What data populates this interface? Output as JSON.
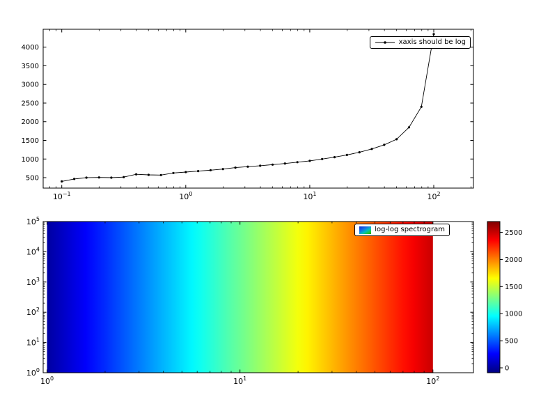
{
  "window": {
    "background": "#ffffff"
  },
  "chart_data": [
    {
      "type": "line",
      "name": "top-line-plot",
      "xscale": "log",
      "yscale": "linear",
      "grid": false,
      "legend_position": "upper right",
      "xlim_log10": [
        -1.15,
        2.32
      ],
      "ylim": [
        220,
        4480
      ],
      "xtick_exponents": [
        -1,
        0,
        1,
        2
      ],
      "yticks": [
        500,
        1000,
        1500,
        2000,
        2500,
        3000,
        3500,
        4000
      ],
      "line_color": "#000000",
      "marker": "dot",
      "legend": {
        "label": "xaxis should be log"
      },
      "x": [
        0.1,
        0.126,
        0.158,
        0.2,
        0.251,
        0.316,
        0.398,
        0.501,
        0.631,
        0.794,
        1.0,
        1.259,
        1.585,
        1.995,
        2.512,
        3.162,
        3.981,
        5.012,
        6.31,
        7.943,
        10.0,
        12.589,
        15.849,
        19.953,
        25.119,
        31.623,
        39.811,
        50.119,
        63.096,
        79.433,
        100.0
      ],
      "y": [
        400,
        465,
        500,
        505,
        500,
        515,
        590,
        575,
        570,
        625,
        650,
        675,
        700,
        730,
        770,
        795,
        820,
        850,
        880,
        915,
        950,
        1000,
        1050,
        1110,
        1180,
        1270,
        1380,
        1530,
        1850,
        2400,
        4350
      ]
    },
    {
      "type": "heatmap",
      "name": "log-log-spectrogram",
      "colormap": "jet",
      "xscale": "log",
      "yscale": "log",
      "legend_position": "upper right",
      "xlim_log10": [
        -0.02,
        2.21
      ],
      "ylim_log10": [
        0,
        5
      ],
      "xtick_exponents": [
        0,
        1,
        2
      ],
      "ytick_exponents": [
        0,
        1,
        2,
        3,
        4,
        5
      ],
      "mesh_x_exponent_range": [
        0,
        2
      ],
      "mesh_value_range": [
        0,
        2500
      ],
      "legend": {
        "label": "log-log spectrogram"
      },
      "colorbar": {
        "vmin": -90,
        "vmax": 2700,
        "ticks": [
          0,
          500,
          1000,
          1500,
          2000,
          2500
        ]
      }
    }
  ]
}
